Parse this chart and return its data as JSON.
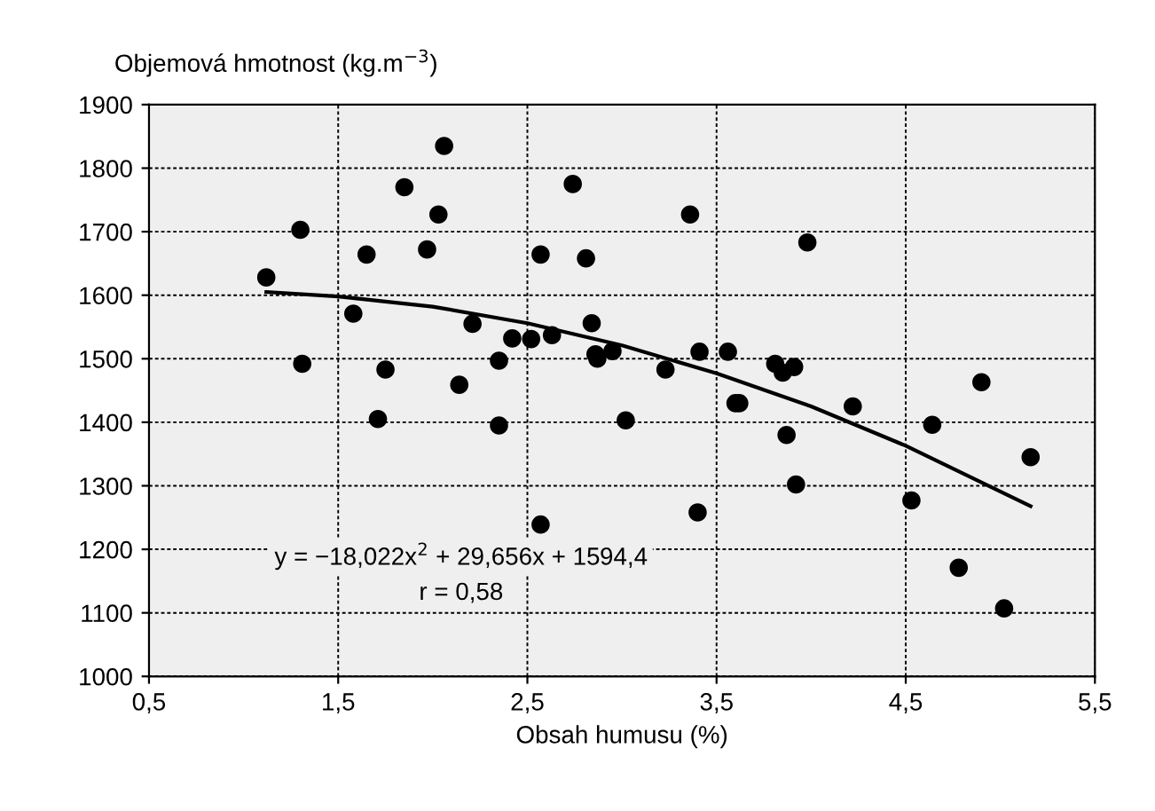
{
  "chart_data": {
    "type": "scatter",
    "xlabel": "Obsah humusu (%)",
    "ylabel": "Objemová hmotnost (kg.m$^{−3}$)",
    "annotations": [
      "y = −18,022x$^{2}$ + 29,656x + 1594,4",
      "r = 0,58"
    ],
    "series": [
      {
        "color": "#000000",
        "marker": "circle",
        "x": [
          1.12,
          1.3,
          1.31,
          1.65,
          1.58,
          1.75,
          1.71,
          1.85,
          1.97,
          2.03,
          2.06,
          2.14,
          2.21,
          2.35,
          2.35,
          2.42,
          2.52,
          2.57,
          2.57,
          2.63,
          2.74,
          2.81,
          2.84,
          2.86,
          2.87,
          2.95,
          3.02,
          3.23,
          3.36,
          3.41,
          3.4,
          3.56,
          3.6,
          3.62,
          3.81,
          3.85,
          3.91,
          3.87,
          3.92,
          3.98,
          4.22,
          4.53,
          4.64,
          4.9,
          4.78,
          5.02,
          5.16
        ],
        "values": [
          1628,
          1703,
          1492,
          1664,
          1571,
          1483,
          1405,
          1770,
          1672,
          1727,
          1835,
          1459,
          1555,
          1497,
          1395,
          1532,
          1531,
          1664,
          1239,
          1537,
          1775,
          1658,
          1556,
          1507,
          1500,
          1512,
          1403,
          1483,
          1727,
          1511,
          1258,
          1511,
          1430,
          1430,
          1492,
          1478,
          1487,
          1380,
          1302,
          1683,
          1425,
          1277,
          1396,
          1463,
          1171,
          1107,
          1345
        ]
      },
      {
        "type": "line",
        "color": "#000000",
        "marker": "none",
        "line_style": "solid",
        "x": [
          1.12,
          1.5,
          2.0,
          2.5,
          3.0,
          3.5,
          4.0,
          4.5,
          5.16
        ],
        "values": [
          1605,
          1598,
          1582,
          1556,
          1521,
          1477,
          1425,
          1363,
          1268
        ]
      }
    ],
    "xlim": [
      0.5,
      5.5
    ],
    "xticks": [
      {
        "value": 0.5,
        "label": "0,5"
      },
      {
        "value": 1.5,
        "label": "1,5"
      },
      {
        "value": 2.5,
        "label": "2,5"
      },
      {
        "value": 3.5,
        "label": "3,5"
      },
      {
        "value": 4.5,
        "label": "4,5"
      },
      {
        "value": 5.5,
        "label": "5,5"
      }
    ],
    "ylim": [
      1000,
      1900
    ],
    "yticks": [
      1000,
      1100,
      1200,
      1300,
      1400,
      1500,
      1600,
      1700,
      1800,
      1900
    ],
    "grid": true,
    "legend": false
  }
}
